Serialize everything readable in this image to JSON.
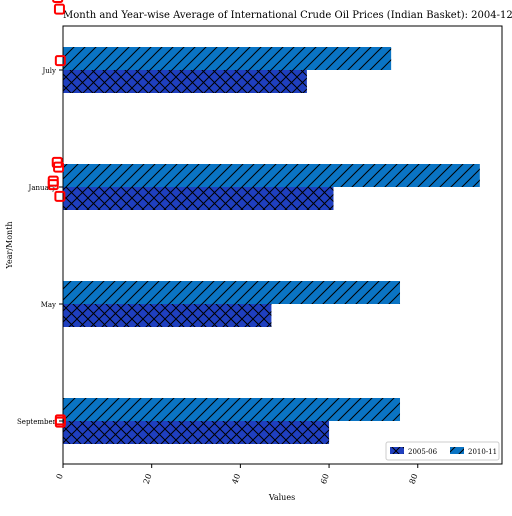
{
  "chart_data": {
    "type": "bar",
    "orientation": "horizontal",
    "title": "Month and Year-wise Average of International Crude Oil Prices (Indian Basket): 2004-12",
    "xlabel": "Values",
    "ylabel": "Year/Month",
    "categories": [
      "September",
      "May",
      "January",
      "July"
    ],
    "series": [
      {
        "name": "2005-06",
        "values": [
          60,
          47,
          61,
          55
        ],
        "color": "#1f3fbf",
        "hatch": "cross"
      },
      {
        "name": "2010-11",
        "values": [
          76,
          76,
          94,
          74
        ],
        "color": "#0a74c4",
        "hatch": "diagonal"
      }
    ],
    "xlim": [
      0,
      99
    ],
    "xticks": [
      0,
      20,
      40,
      60,
      80
    ],
    "grid": false,
    "legend_position": "lower-right",
    "markers": {
      "shape": "hollow-square",
      "color": "#ff0000",
      "points": [
        {
          "x": -1.5,
          "y": 3.7
        },
        {
          "x": -1.5,
          "y": 3.66
        },
        {
          "x": -1.2,
          "y": 3.62
        },
        {
          "x": -0.8,
          "y": 3.52
        },
        {
          "x": -0.6,
          "y": 3.08
        },
        {
          "x": -1.3,
          "y": 2.21
        },
        {
          "x": -1.0,
          "y": 2.17
        },
        {
          "x": -2.2,
          "y": 2.05
        },
        {
          "x": -2.2,
          "y": 2.02
        },
        {
          "x": -0.7,
          "y": 1.92
        },
        {
          "x": -0.6,
          "y": 0.01
        },
        {
          "x": -0.6,
          "y": -0.01
        }
      ]
    }
  }
}
